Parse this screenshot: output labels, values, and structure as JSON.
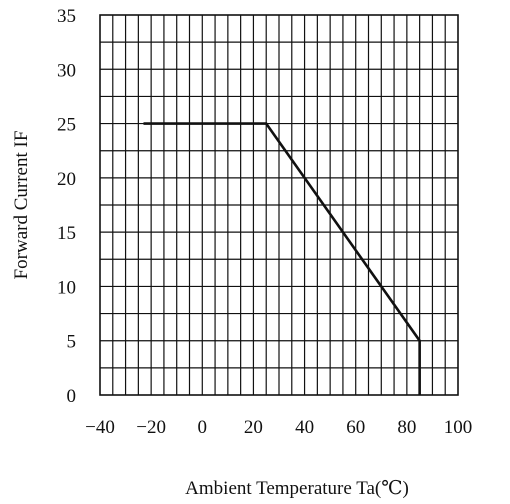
{
  "chart_data": {
    "type": "line",
    "title": "",
    "xlabel": "Ambient Temperature Ta(℃)",
    "ylabel": "Forward Current IF",
    "xlim": [
      -40,
      100
    ],
    "ylim": [
      0,
      35
    ],
    "x_ticks": [
      -40,
      -20,
      0,
      20,
      40,
      60,
      80,
      100
    ],
    "y_ticks": [
      0,
      5,
      10,
      15,
      20,
      25,
      30,
      35
    ],
    "x_tick_labels": [
      "−40",
      "−20",
      "0",
      "20",
      "40",
      "60",
      "80",
      "100"
    ],
    "y_tick_labels": [
      "0",
      "5",
      "10",
      "15",
      "20",
      "25",
      "30",
      "35"
    ],
    "x_minor_step": 5,
    "y_minor_step": 2.5,
    "grid": true,
    "series": [
      {
        "x": [
          -23,
          25,
          85,
          85
        ],
        "y": [
          25,
          25,
          5,
          0
        ]
      }
    ]
  }
}
